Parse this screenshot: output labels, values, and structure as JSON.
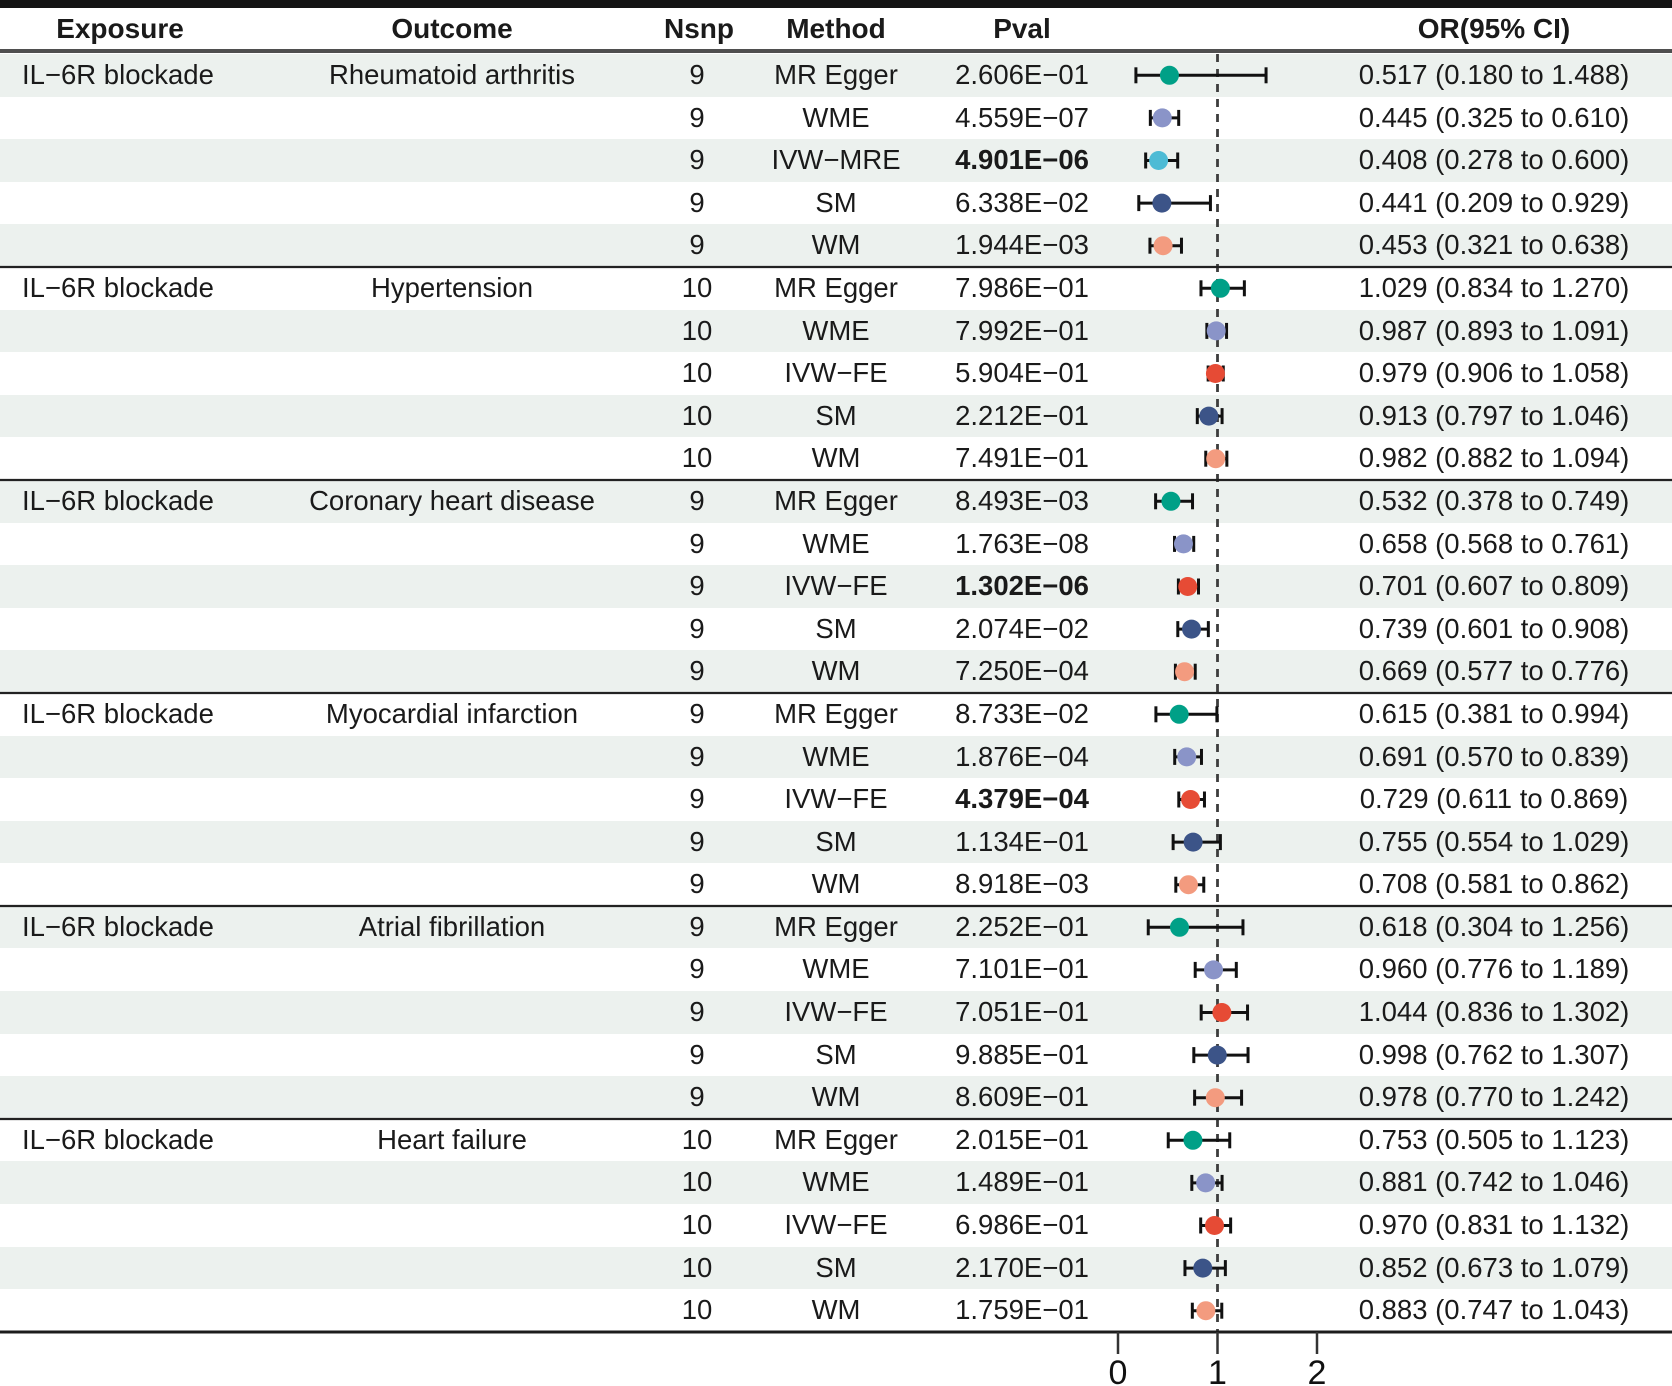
{
  "header": {
    "exposure": "Exposure",
    "outcome": "Outcome",
    "nsnp": "Nsnp",
    "method": "Method",
    "pval": "Pval",
    "or_ci": "OR(95% CI)"
  },
  "colors": {
    "MR Egger": "#00A087",
    "WME": "#8A94C8",
    "IVW−MRE": "#4DBBD5",
    "IVW−FE": "#E64B35",
    "SM": "#3C5488",
    "WM": "#F39B7F",
    "whisker": "#111111",
    "reference_line": "#3d3d3d",
    "row_shade": "#ecf1ee"
  },
  "chart_data": {
    "type": "forest",
    "title": "",
    "xlabel": "",
    "x_axis": {
      "ticks": [
        0,
        1,
        2
      ],
      "tick_labels": [
        "0",
        "1",
        "2"
      ],
      "reference_line": 1
    },
    "groups": [
      {
        "exposure": "IL−6R blockade",
        "outcome": "Rheumatoid arthritis",
        "rows": [
          {
            "nsnp": "9",
            "method": "MR Egger",
            "pval": "2.606E−01",
            "bold": false,
            "or": 0.517,
            "lo": 0.18,
            "hi": 1.488,
            "or_ci": "0.517 (0.180 to 1.488)"
          },
          {
            "nsnp": "9",
            "method": "WME",
            "pval": "4.559E−07",
            "bold": false,
            "or": 0.445,
            "lo": 0.325,
            "hi": 0.61,
            "or_ci": "0.445 (0.325 to 0.610)"
          },
          {
            "nsnp": "9",
            "method": "IVW−MRE",
            "pval": "4.901E−06",
            "bold": true,
            "or": 0.408,
            "lo": 0.278,
            "hi": 0.6,
            "or_ci": "0.408 (0.278 to 0.600)"
          },
          {
            "nsnp": "9",
            "method": "SM",
            "pval": "6.338E−02",
            "bold": false,
            "or": 0.441,
            "lo": 0.209,
            "hi": 0.929,
            "or_ci": "0.441 (0.209 to 0.929)"
          },
          {
            "nsnp": "9",
            "method": "WM",
            "pval": "1.944E−03",
            "bold": false,
            "or": 0.453,
            "lo": 0.321,
            "hi": 0.638,
            "or_ci": "0.453 (0.321 to 0.638)"
          }
        ]
      },
      {
        "exposure": "IL−6R blockade",
        "outcome": "Hypertension",
        "rows": [
          {
            "nsnp": "10",
            "method": "MR Egger",
            "pval": "7.986E−01",
            "bold": false,
            "or": 1.029,
            "lo": 0.834,
            "hi": 1.27,
            "or_ci": "1.029 (0.834 to 1.270)"
          },
          {
            "nsnp": "10",
            "method": "WME",
            "pval": "7.992E−01",
            "bold": false,
            "or": 0.987,
            "lo": 0.893,
            "hi": 1.091,
            "or_ci": "0.987 (0.893 to 1.091)"
          },
          {
            "nsnp": "10",
            "method": "IVW−FE",
            "pval": "5.904E−01",
            "bold": false,
            "or": 0.979,
            "lo": 0.906,
            "hi": 1.058,
            "or_ci": "0.979 (0.906 to 1.058)"
          },
          {
            "nsnp": "10",
            "method": "SM",
            "pval": "2.212E−01",
            "bold": false,
            "or": 0.913,
            "lo": 0.797,
            "hi": 1.046,
            "or_ci": "0.913 (0.797 to 1.046)"
          },
          {
            "nsnp": "10",
            "method": "WM",
            "pval": "7.491E−01",
            "bold": false,
            "or": 0.982,
            "lo": 0.882,
            "hi": 1.094,
            "or_ci": "0.982 (0.882 to 1.094)"
          }
        ]
      },
      {
        "exposure": "IL−6R blockade",
        "outcome": "Coronary heart disease",
        "rows": [
          {
            "nsnp": "9",
            "method": "MR Egger",
            "pval": "8.493E−03",
            "bold": false,
            "or": 0.532,
            "lo": 0.378,
            "hi": 0.749,
            "or_ci": "0.532 (0.378 to 0.749)"
          },
          {
            "nsnp": "9",
            "method": "WME",
            "pval": "1.763E−08",
            "bold": false,
            "or": 0.658,
            "lo": 0.568,
            "hi": 0.761,
            "or_ci": "0.658 (0.568 to 0.761)"
          },
          {
            "nsnp": "9",
            "method": "IVW−FE",
            "pval": "1.302E−06",
            "bold": true,
            "or": 0.701,
            "lo": 0.607,
            "hi": 0.809,
            "or_ci": "0.701 (0.607 to 0.809)"
          },
          {
            "nsnp": "9",
            "method": "SM",
            "pval": "2.074E−02",
            "bold": false,
            "or": 0.739,
            "lo": 0.601,
            "hi": 0.908,
            "or_ci": "0.739 (0.601 to 0.908)"
          },
          {
            "nsnp": "9",
            "method": "WM",
            "pval": "7.250E−04",
            "bold": false,
            "or": 0.669,
            "lo": 0.577,
            "hi": 0.776,
            "or_ci": "0.669 (0.577 to 0.776)"
          }
        ]
      },
      {
        "exposure": "IL−6R blockade",
        "outcome": "Myocardial infarction",
        "rows": [
          {
            "nsnp": "9",
            "method": "MR Egger",
            "pval": "8.733E−02",
            "bold": false,
            "or": 0.615,
            "lo": 0.381,
            "hi": 0.994,
            "or_ci": "0.615 (0.381 to 0.994)"
          },
          {
            "nsnp": "9",
            "method": "WME",
            "pval": "1.876E−04",
            "bold": false,
            "or": 0.691,
            "lo": 0.57,
            "hi": 0.839,
            "or_ci": "0.691 (0.570 to 0.839)"
          },
          {
            "nsnp": "9",
            "method": "IVW−FE",
            "pval": "4.379E−04",
            "bold": true,
            "or": 0.729,
            "lo": 0.611,
            "hi": 0.869,
            "or_ci": "0.729 (0.611 to 0.869)"
          },
          {
            "nsnp": "9",
            "method": "SM",
            "pval": "1.134E−01",
            "bold": false,
            "or": 0.755,
            "lo": 0.554,
            "hi": 1.029,
            "or_ci": "0.755 (0.554 to 1.029)"
          },
          {
            "nsnp": "9",
            "method": "WM",
            "pval": "8.918E−03",
            "bold": false,
            "or": 0.708,
            "lo": 0.581,
            "hi": 0.862,
            "or_ci": "0.708 (0.581 to 0.862)"
          }
        ]
      },
      {
        "exposure": "IL−6R blockade",
        "outcome": "Atrial fibrillation",
        "rows": [
          {
            "nsnp": "9",
            "method": "MR Egger",
            "pval": "2.252E−01",
            "bold": false,
            "or": 0.618,
            "lo": 0.304,
            "hi": 1.256,
            "or_ci": "0.618 (0.304 to 1.256)"
          },
          {
            "nsnp": "9",
            "method": "WME",
            "pval": "7.101E−01",
            "bold": false,
            "or": 0.96,
            "lo": 0.776,
            "hi": 1.189,
            "or_ci": "0.960 (0.776 to 1.189)"
          },
          {
            "nsnp": "9",
            "method": "IVW−FE",
            "pval": "7.051E−01",
            "bold": false,
            "or": 1.044,
            "lo": 0.836,
            "hi": 1.302,
            "or_ci": "1.044 (0.836 to 1.302)"
          },
          {
            "nsnp": "9",
            "method": "SM",
            "pval": "9.885E−01",
            "bold": false,
            "or": 0.998,
            "lo": 0.762,
            "hi": 1.307,
            "or_ci": "0.998 (0.762 to 1.307)"
          },
          {
            "nsnp": "9",
            "method": "WM",
            "pval": "8.609E−01",
            "bold": false,
            "or": 0.978,
            "lo": 0.77,
            "hi": 1.242,
            "or_ci": "0.978 (0.770 to 1.242)"
          }
        ]
      },
      {
        "exposure": "IL−6R blockade",
        "outcome": "Heart failure",
        "rows": [
          {
            "nsnp": "10",
            "method": "MR Egger",
            "pval": "2.015E−01",
            "bold": false,
            "or": 0.753,
            "lo": 0.505,
            "hi": 1.123,
            "or_ci": "0.753 (0.505 to 1.123)"
          },
          {
            "nsnp": "10",
            "method": "WME",
            "pval": "1.489E−01",
            "bold": false,
            "or": 0.881,
            "lo": 0.742,
            "hi": 1.046,
            "or_ci": "0.881 (0.742 to 1.046)"
          },
          {
            "nsnp": "10",
            "method": "IVW−FE",
            "pval": "6.986E−01",
            "bold": false,
            "or": 0.97,
            "lo": 0.831,
            "hi": 1.132,
            "or_ci": "0.970 (0.831 to 1.132)"
          },
          {
            "nsnp": "10",
            "method": "SM",
            "pval": "2.170E−01",
            "bold": false,
            "or": 0.852,
            "lo": 0.673,
            "hi": 1.079,
            "or_ci": "0.852 (0.673 to 1.079)"
          },
          {
            "nsnp": "10",
            "method": "WM",
            "pval": "1.759E−01",
            "bold": false,
            "or": 0.883,
            "lo": 0.747,
            "hi": 1.043,
            "or_ci": "0.883 (0.747 to 1.043)"
          }
        ]
      }
    ]
  }
}
